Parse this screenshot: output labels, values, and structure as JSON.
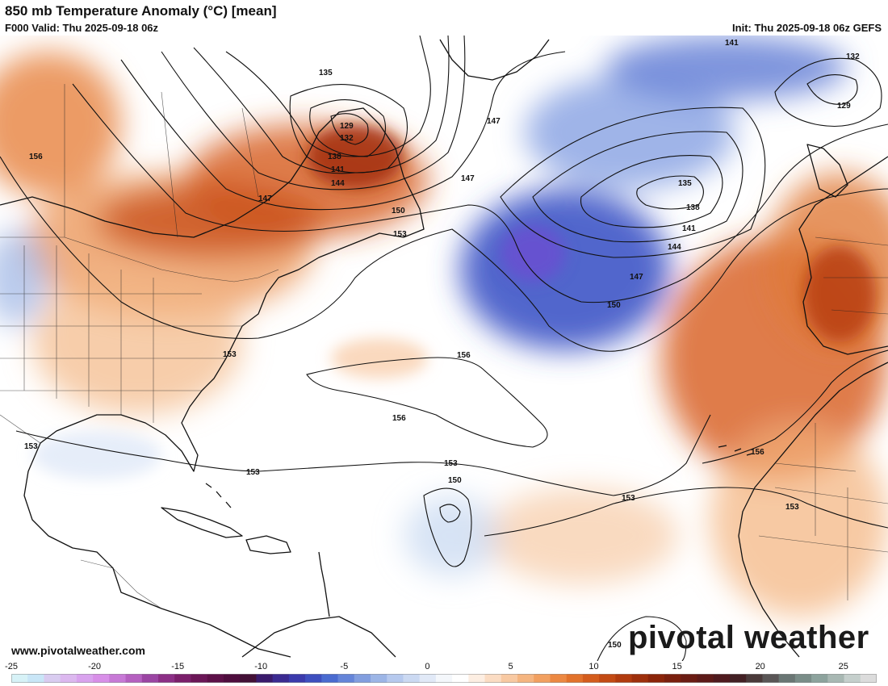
{
  "header": {
    "title": "850 mb Temperature Anomaly (°C) [mean]",
    "valid": "F000 Valid: Thu 2025-09-18 06z",
    "init": "Init: Thu 2025-09-18 06z GEFS"
  },
  "footer": {
    "website": "www.pivotalweather.com",
    "logo_text": "pivotal weather"
  },
  "colorbar": {
    "ticks": [
      "-25",
      "-20",
      "-15",
      "-10",
      "-5",
      "0",
      "5",
      "10",
      "15",
      "20",
      "25"
    ],
    "min": -25,
    "max": 27,
    "colors": [
      "#d7f2f7",
      "#c9e6f7",
      "#d9ccf0",
      "#dcb8ef",
      "#d9a3ee",
      "#d88fe8",
      "#c779d6",
      "#b560c0",
      "#9b45a3",
      "#8c2f86",
      "#7b1f6b",
      "#6b1657",
      "#5d1048",
      "#4f0d3e",
      "#431036",
      "#3a1a6c",
      "#3b2a91",
      "#3b3aac",
      "#3e4fbf",
      "#4a6bd0",
      "#6585d9",
      "#829edf",
      "#9cb5e6",
      "#b6c9ee",
      "#cbd9f2",
      "#e1e9f7",
      "#f4f7fb",
      "#ffffff",
      "#fdeee2",
      "#fbdcc3",
      "#f8c9a2",
      "#f5b580",
      "#f2a060",
      "#ec8842",
      "#e2722b",
      "#d45c1c",
      "#c34a13",
      "#b13b0e",
      "#9e2f0b",
      "#8b2409",
      "#7a1f0d",
      "#6b1c13",
      "#5d1a18",
      "#4f1a1e",
      "#432024",
      "#4a3a3a",
      "#5a5656",
      "#6a7674",
      "#7a8d88",
      "#8da39d",
      "#a8b8b3",
      "#c5cfcc",
      "#dcdcdc"
    ]
  },
  "contours": [
    {
      "label": "129"
    },
    {
      "label": "132"
    },
    {
      "label": "135"
    },
    {
      "label": "138"
    },
    {
      "label": "141"
    },
    {
      "label": "144"
    },
    {
      "label": "147"
    },
    {
      "label": "150"
    },
    {
      "label": "153"
    },
    {
      "label": "156"
    }
  ]
}
